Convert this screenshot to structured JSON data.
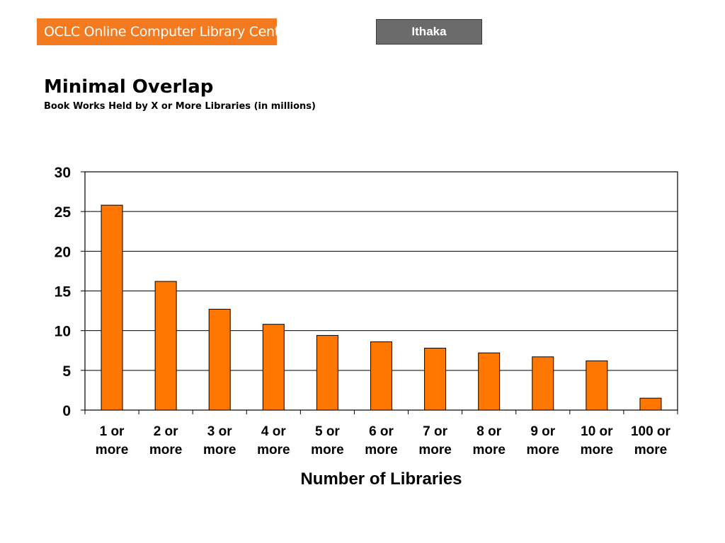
{
  "header": {
    "logo_text": "OCLC Online Computer Library Center",
    "partner_label": "Ithaka"
  },
  "slide": {
    "title": "Minimal Overlap",
    "subtitle": "Book Works Held by X or More Libraries (in millions)"
  },
  "colors": {
    "brand_orange": "#f47a20",
    "bar_fill": "#ff7700",
    "partner_box": "#6b6b6b"
  },
  "chart_data": {
    "type": "bar",
    "categories": [
      [
        "1 or",
        "more"
      ],
      [
        "2 or",
        "more"
      ],
      [
        "3 or",
        "more"
      ],
      [
        "4 or",
        "more"
      ],
      [
        "5 or",
        "more"
      ],
      [
        "6 or",
        "more"
      ],
      [
        "7 or",
        "more"
      ],
      [
        "8 or",
        "more"
      ],
      [
        "9 or",
        "more"
      ],
      [
        "10 or",
        "more"
      ],
      [
        "100 or",
        "more"
      ]
    ],
    "values": [
      25.8,
      16.2,
      12.7,
      10.8,
      9.4,
      8.6,
      7.8,
      7.2,
      6.7,
      6.2,
      1.5
    ],
    "ylim": [
      0,
      30
    ],
    "yticks": [
      0,
      5,
      10,
      15,
      20,
      25,
      30
    ],
    "xlabel": "Number of Libraries",
    "ylabel": "",
    "grid": true,
    "legend": "none"
  }
}
